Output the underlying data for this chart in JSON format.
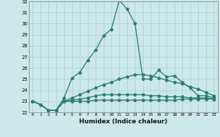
{
  "xlabel": "Humidex (Indice chaleur)",
  "x_values": [
    0,
    1,
    2,
    3,
    4,
    5,
    6,
    7,
    8,
    9,
    10,
    11,
    12,
    13,
    14,
    15,
    16,
    17,
    18,
    19,
    20,
    21,
    22,
    23
  ],
  "line1": [
    23.0,
    22.7,
    22.2,
    22.2,
    23.3,
    25.1,
    25.6,
    26.7,
    27.6,
    28.9,
    29.5,
    32.1,
    31.3,
    30.0,
    25.0,
    25.0,
    25.8,
    25.2,
    25.3,
    24.7,
    24.2,
    23.5,
    23.5,
    23.3
  ],
  "line2": [
    23.0,
    22.7,
    22.2,
    22.2,
    23.0,
    23.3,
    23.6,
    23.9,
    24.2,
    24.5,
    24.7,
    25.0,
    25.2,
    25.4,
    25.4,
    25.3,
    25.1,
    24.9,
    24.7,
    24.6,
    24.3,
    24.1,
    23.8,
    23.5
  ],
  "line3": [
    23.0,
    22.7,
    22.2,
    22.2,
    23.0,
    23.1,
    23.2,
    23.3,
    23.5,
    23.6,
    23.6,
    23.6,
    23.6,
    23.6,
    23.6,
    23.5,
    23.5,
    23.4,
    23.4,
    23.4,
    23.3,
    23.3,
    23.3,
    23.2
  ],
  "line4": [
    23.0,
    22.7,
    22.2,
    22.2,
    23.0,
    23.0,
    23.0,
    23.0,
    23.1,
    23.1,
    23.1,
    23.1,
    23.1,
    23.1,
    23.1,
    23.1,
    23.1,
    23.1,
    23.1,
    23.2,
    23.2,
    23.2,
    23.2,
    23.2
  ],
  "line_color": "#2e7d6e",
  "bg_color": "#cce8e8",
  "grid_color": "#aad4d4",
  "ylim_min": 22.0,
  "ylim_max": 32.0,
  "yticks": [
    22,
    23,
    24,
    25,
    26,
    27,
    28,
    29,
    30,
    31,
    32
  ],
  "xticks": [
    0,
    1,
    2,
    3,
    4,
    5,
    6,
    7,
    8,
    9,
    10,
    11,
    12,
    13,
    14,
    15,
    16,
    17,
    18,
    19,
    20,
    21,
    22,
    23
  ],
  "marker_size": 2.5,
  "linewidth": 1.0
}
